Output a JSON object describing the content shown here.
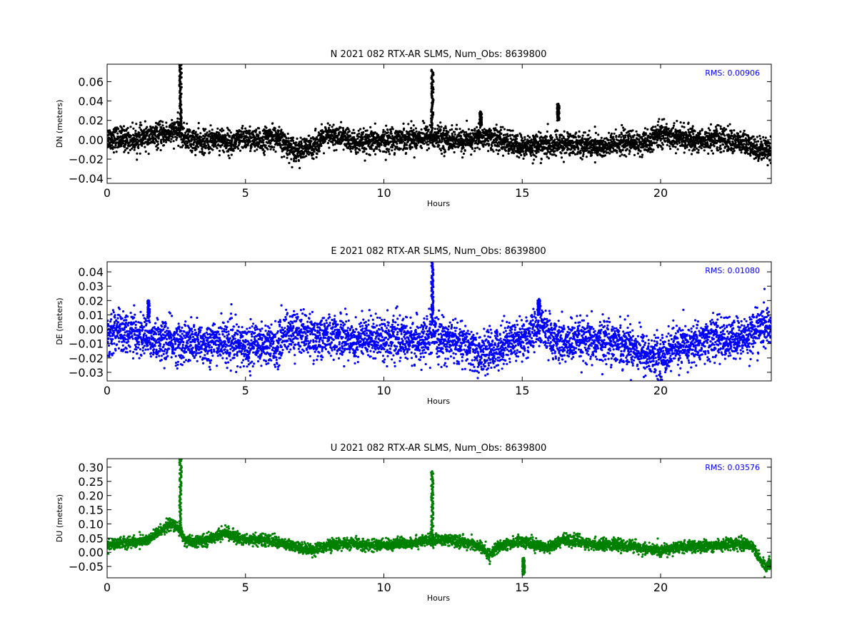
{
  "chart_data": [
    {
      "type": "scatter",
      "title": "N 2021 082 RTX-AR  SLMS, Num_Obs: 8639800",
      "xlabel": "Hours",
      "ylabel": "DN (meters)",
      "xlim": [
        0,
        24
      ],
      "ylim": [
        -0.045,
        0.078
      ],
      "xticks": [
        0,
        5,
        10,
        15,
        20
      ],
      "yticks": [
        -0.04,
        -0.02,
        0.0,
        0.02,
        0.04,
        0.06
      ],
      "ytick_labels": [
        "−0.04",
        "−0.02",
        "0.00",
        "0.02",
        "0.04",
        "0.06"
      ],
      "color": "#000000",
      "annotation": "RMS:  0.00906",
      "annotation_color": "#0000ff",
      "series": [
        {
          "x": [
            0,
            0.5,
            1,
            1.5,
            2,
            2.4,
            2.6,
            2.7,
            3,
            3.5,
            4,
            4.5,
            5,
            5.5,
            6,
            6.5,
            7,
            7.5,
            8,
            8.5,
            9,
            9.5,
            10,
            10.5,
            11,
            11.5,
            11.7,
            11.8,
            12,
            12.5,
            13,
            13.5,
            14,
            14.5,
            15,
            15.5,
            16,
            16.5,
            17,
            17.5,
            18,
            18.5,
            19,
            19.5,
            20,
            20.5,
            21,
            21.5,
            22,
            22.5,
            23,
            23.5,
            24
          ],
          "y": [
            0.002,
            0.001,
            0.0,
            0.003,
            0.005,
            0.008,
            0.01,
            0.004,
            0.0,
            -0.003,
            0.002,
            -0.004,
            0.002,
            -0.002,
            0.004,
            -0.006,
            -0.012,
            -0.005,
            0.004,
            0.003,
            -0.004,
            -0.003,
            -0.001,
            0.001,
            0.002,
            0.003,
            0.004,
            0.002,
            0.002,
            0.0,
            -0.002,
            0.004,
            0.001,
            -0.003,
            -0.008,
            -0.005,
            -0.007,
            -0.004,
            -0.004,
            -0.006,
            -0.008,
            -0.003,
            -0.003,
            -0.004,
            0.007,
            0.003,
            0.001,
            -0.001,
            0.002,
            -0.001,
            -0.004,
            -0.01,
            -0.008
          ],
          "spread": 0.011
        }
      ],
      "spikes": [
        {
          "x": 2.65,
          "y_from": 0.01,
          "y_to": 0.078
        },
        {
          "x": 11.75,
          "y_from": 0.012,
          "y_to": 0.072
        },
        {
          "x": 16.3,
          "y_from": 0.02,
          "y_to": 0.037
        },
        {
          "x": 13.5,
          "y_from": 0.015,
          "y_to": 0.029
        }
      ]
    },
    {
      "type": "scatter",
      "title": "E 2021 082 RTX-AR  SLMS, Num_Obs: 8639800",
      "xlabel": "Hours",
      "ylabel": "DE (meters)",
      "xlim": [
        0,
        24
      ],
      "ylim": [
        -0.036,
        0.047
      ],
      "xticks": [
        0,
        5,
        10,
        15,
        20
      ],
      "yticks": [
        -0.03,
        -0.02,
        -0.01,
        0.0,
        0.01,
        0.02,
        0.03,
        0.04
      ],
      "ytick_labels": [
        "−0.03",
        "−0.02",
        "−0.01",
        "0.00",
        "0.01",
        "0.02",
        "0.03",
        "0.04"
      ],
      "color": "#0000ff",
      "annotation": "RMS:  0.01080",
      "annotation_color": "#0000ff",
      "series": [
        {
          "x": [
            0,
            0.5,
            1,
            1.5,
            2,
            2.5,
            3,
            3.5,
            4,
            4.5,
            5,
            5.5,
            6,
            6.2,
            6.4,
            7,
            7.5,
            8,
            8.5,
            9,
            9.5,
            10,
            10.5,
            11,
            11.5,
            11.75,
            12,
            12.5,
            13,
            13.5,
            14,
            14.5,
            15,
            15.5,
            15.7,
            16,
            16.5,
            17,
            17.5,
            18,
            18.5,
            19,
            19.5,
            20,
            20.5,
            21,
            21.5,
            22,
            22.5,
            23,
            23.5,
            24
          ],
          "y": [
            -0.004,
            0.0,
            -0.004,
            -0.005,
            -0.008,
            -0.009,
            -0.01,
            -0.01,
            -0.008,
            -0.01,
            -0.012,
            -0.009,
            -0.011,
            -0.012,
            -0.002,
            -0.002,
            -0.006,
            -0.004,
            -0.005,
            -0.008,
            -0.005,
            -0.006,
            -0.007,
            -0.008,
            -0.008,
            -0.004,
            -0.007,
            -0.008,
            -0.012,
            -0.018,
            -0.014,
            -0.008,
            -0.006,
            -0.002,
            0.004,
            -0.006,
            -0.01,
            -0.008,
            -0.01,
            -0.007,
            -0.009,
            -0.012,
            -0.018,
            -0.02,
            -0.012,
            -0.012,
            -0.008,
            -0.006,
            -0.008,
            -0.006,
            0.0,
            0.002
          ],
          "spread": 0.013
        }
      ],
      "spikes": [
        {
          "x": 11.75,
          "y_from": 0.005,
          "y_to": 0.047
        },
        {
          "x": 1.5,
          "y_from": 0.008,
          "y_to": 0.02
        },
        {
          "x": 15.6,
          "y_from": 0.01,
          "y_to": 0.021
        }
      ]
    },
    {
      "type": "scatter",
      "title": "U 2021 082 RTX-AR  SLMS, Num_Obs: 8639800",
      "xlabel": "Hours",
      "ylabel": "DU (meters)",
      "xlim": [
        0,
        24
      ],
      "ylim": [
        -0.09,
        0.33
      ],
      "xticks": [
        0,
        5,
        10,
        15,
        20
      ],
      "yticks": [
        -0.05,
        0.0,
        0.05,
        0.1,
        0.15,
        0.2,
        0.25,
        0.3
      ],
      "ytick_labels": [
        "−0.05",
        "0.00",
        "0.05",
        "0.10",
        "0.15",
        "0.20",
        "0.25",
        "0.30"
      ],
      "color": "#008000",
      "annotation": "RMS:  0.03576",
      "annotation_color": "#0000ff",
      "series": [
        {
          "x": [
            0,
            0.5,
            1,
            1.5,
            2,
            2.3,
            2.6,
            2.8,
            3,
            3.5,
            4,
            4.3,
            4.6,
            5,
            5.5,
            6,
            6.5,
            7,
            7.5,
            8,
            8.5,
            9,
            9.5,
            10,
            10.5,
            11,
            11.5,
            12,
            12.5,
            13,
            13.5,
            13.8,
            14,
            14.5,
            15,
            15.5,
            16,
            16.5,
            17,
            17.5,
            18,
            18.5,
            19,
            19.5,
            20,
            20.5,
            21,
            21.5,
            22,
            22.5,
            23,
            23.3,
            23.6,
            23.8,
            24
          ],
          "y": [
            0.025,
            0.035,
            0.035,
            0.045,
            0.08,
            0.1,
            0.08,
            0.045,
            0.035,
            0.04,
            0.06,
            0.07,
            0.055,
            0.045,
            0.045,
            0.04,
            0.025,
            0.015,
            0.01,
            0.025,
            0.03,
            0.03,
            0.025,
            0.025,
            0.03,
            0.035,
            0.04,
            0.045,
            0.04,
            0.035,
            0.02,
            -0.01,
            0.01,
            0.03,
            0.04,
            0.025,
            0.02,
            0.045,
            0.04,
            0.025,
            0.03,
            0.025,
            0.02,
            0.01,
            0.005,
            0.015,
            0.02,
            0.02,
            0.025,
            0.03,
            0.03,
            0.025,
            -0.03,
            -0.05,
            -0.03
          ],
          "spread": 0.018
        }
      ],
      "spikes": [
        {
          "x": 2.65,
          "y_from": 0.07,
          "y_to": 0.33
        },
        {
          "x": 11.75,
          "y_from": 0.05,
          "y_to": 0.285
        },
        {
          "x": 15.05,
          "y_from": -0.02,
          "y_to": -0.078
        }
      ]
    }
  ]
}
